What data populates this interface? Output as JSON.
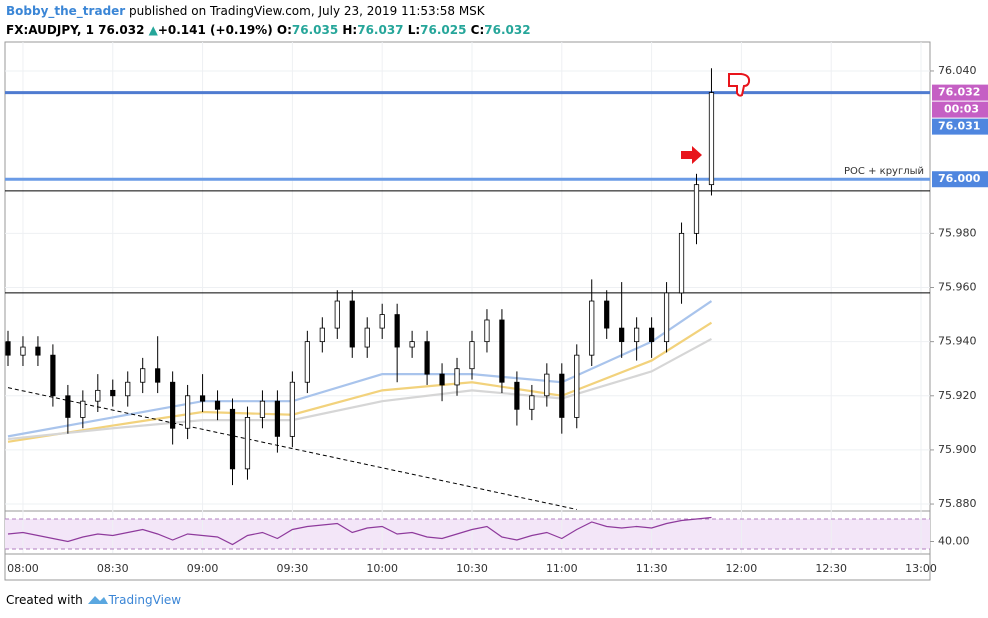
{
  "header": {
    "author": "Bobby_the_trader",
    "published": "published on TradingView.com, July 23, 2019 11:53:58 MSK",
    "symbol": "FX:AUDJPY, 1",
    "price": "76.032",
    "arrow": "▲",
    "change": "+0.141 (+0.19%)",
    "o_label": "O:",
    "o": "76.035",
    "h_label": "H:",
    "h": "76.037",
    "l_label": "L:",
    "l": "76.025",
    "c_label": "C:",
    "c": "76.032"
  },
  "footer": {
    "created": "Created with",
    "brand": "TradingView"
  },
  "chart_data": {
    "type": "candlestick",
    "x": [
      "07:55",
      "08:00",
      "08:05",
      "08:10",
      "08:15",
      "08:20",
      "08:25",
      "08:30",
      "08:35",
      "08:40",
      "08:45",
      "08:50",
      "08:55",
      "09:00",
      "09:05",
      "09:10",
      "09:15",
      "09:20",
      "09:25",
      "09:30",
      "09:35",
      "09:40",
      "09:45",
      "09:50",
      "09:55",
      "10:00",
      "10:05",
      "10:10",
      "10:15",
      "10:20",
      "10:25",
      "10:30",
      "10:35",
      "10:40",
      "10:45",
      "10:50",
      "10:55",
      "11:00",
      "11:05",
      "11:10",
      "11:15",
      "11:20",
      "11:25",
      "11:30",
      "11:35",
      "11:40",
      "11:45",
      "11:50"
    ],
    "open": [
      75.94,
      75.935,
      75.938,
      75.935,
      75.92,
      75.912,
      75.918,
      75.922,
      75.92,
      75.925,
      75.93,
      75.925,
      75.908,
      75.92,
      75.918,
      75.915,
      75.893,
      75.912,
      75.918,
      75.905,
      75.925,
      75.94,
      75.945,
      75.955,
      75.938,
      75.945,
      75.95,
      75.938,
      75.94,
      75.928,
      75.924,
      75.93,
      75.94,
      75.948,
      75.925,
      75.915,
      75.92,
      75.928,
      75.912,
      75.935,
      75.955,
      75.945,
      75.94,
      75.945,
      75.94,
      75.958,
      75.98,
      75.998
    ],
    "high": [
      75.944,
      75.942,
      75.942,
      75.939,
      75.924,
      75.922,
      75.928,
      75.926,
      75.929,
      75.934,
      75.942,
      75.929,
      75.924,
      75.928,
      75.922,
      75.919,
      75.916,
      75.922,
      75.922,
      75.929,
      75.944,
      75.949,
      75.959,
      75.959,
      75.949,
      75.954,
      75.954,
      75.944,
      75.944,
      75.932,
      75.934,
      75.944,
      75.952,
      75.952,
      75.929,
      75.924,
      75.932,
      75.932,
      75.939,
      75.963,
      75.959,
      75.962,
      75.949,
      75.949,
      75.962,
      75.984,
      76.002,
      76.041
    ],
    "low": [
      75.931,
      75.931,
      75.931,
      75.916,
      75.906,
      75.908,
      75.914,
      75.916,
      75.916,
      75.921,
      75.921,
      75.902,
      75.904,
      75.914,
      75.911,
      75.887,
      75.889,
      75.908,
      75.899,
      75.901,
      75.921,
      75.936,
      75.941,
      75.934,
      75.934,
      75.941,
      75.925,
      75.934,
      75.924,
      75.918,
      75.92,
      75.926,
      75.936,
      75.921,
      75.909,
      75.911,
      75.916,
      75.906,
      75.908,
      75.931,
      75.941,
      75.934,
      75.933,
      75.934,
      75.936,
      75.954,
      75.976,
      75.994
    ],
    "close": [
      75.935,
      75.938,
      75.935,
      75.92,
      75.912,
      75.918,
      75.922,
      75.92,
      75.925,
      75.93,
      75.925,
      75.908,
      75.92,
      75.918,
      75.915,
      75.893,
      75.912,
      75.918,
      75.905,
      75.925,
      75.94,
      75.945,
      75.955,
      75.938,
      75.945,
      75.95,
      75.938,
      75.94,
      75.928,
      75.924,
      75.93,
      75.94,
      75.948,
      75.925,
      75.915,
      75.92,
      75.928,
      75.912,
      75.935,
      75.955,
      75.945,
      75.94,
      75.945,
      75.94,
      75.958,
      75.98,
      75.998,
      76.032
    ],
    "up_color": "#ffffff",
    "down_color": "#000000",
    "wick_color": "#000000",
    "xlim": [
      "07:54",
      "13:03"
    ],
    "xticks": [
      "08:00",
      "08:30",
      "09:00",
      "09:30",
      "10:00",
      "10:30",
      "11:00",
      "11:30",
      "12:00",
      "12:30",
      "13:00"
    ],
    "ylim": [
      75.8778,
      76.0507
    ],
    "yticks": [
      {
        "value": 76.04,
        "label": "76.040"
      },
      {
        "value": 75.98,
        "label": "75.980"
      },
      {
        "value": 75.96,
        "label": "75.960"
      },
      {
        "value": 75.94,
        "label": "75.940"
      },
      {
        "value": 75.92,
        "label": "75.920"
      },
      {
        "value": 75.9,
        "label": "75.900"
      },
      {
        "value": 75.88,
        "label": "75.880"
      }
    ],
    "grid": true,
    "moving_averages": [
      {
        "color": "#a9c4ec",
        "x": [
          "07:55",
          "08:30",
          "09:00",
          "09:30",
          "10:00",
          "10:30",
          "11:00",
          "11:30",
          "11:50"
        ],
        "values": [
          75.905,
          75.912,
          75.918,
          75.918,
          75.928,
          75.928,
          75.925,
          75.94,
          75.955
        ]
      },
      {
        "color": "#f2d27c",
        "x": [
          "07:55",
          "08:30",
          "09:00",
          "09:30",
          "10:00",
          "10:30",
          "11:00",
          "11:30",
          "11:50"
        ],
        "values": [
          75.903,
          75.909,
          75.914,
          75.913,
          75.922,
          75.925,
          75.92,
          75.933,
          75.947
        ]
      },
      {
        "color": "#d6d6d6",
        "x": [
          "07:55",
          "08:30",
          "09:00",
          "09:30",
          "10:00",
          "10:30",
          "11:00",
          "11:30",
          "11:50"
        ],
        "values": [
          75.904,
          75.908,
          75.911,
          75.911,
          75.918,
          75.922,
          75.919,
          75.929,
          75.941
        ]
      }
    ],
    "levels": [
      {
        "value": 76.032,
        "color": "#4f7bd0"
      },
      {
        "value": 76.0,
        "color": "#6a9be6"
      },
      {
        "value": 75.9957,
        "color": "#000000"
      },
      {
        "value": 75.958,
        "color": "#000000"
      }
    ],
    "level_annotation": {
      "value": 76.0,
      "text": "POC + круглый"
    },
    "trendline": {
      "x": [
        "07:55",
        "11:05"
      ],
      "values": [
        75.923,
        75.878
      ]
    },
    "price_badges": [
      {
        "value": 76.032,
        "label": "76.032",
        "color": "#c55fc4"
      },
      {
        "value": 76.031,
        "label": "76.031",
        "color": "#4f86df"
      },
      {
        "value": 76.0,
        "label": "76.000",
        "color": "#4f86df"
      }
    ],
    "countdown": "00:03",
    "rsi": {
      "values": [
        50,
        52,
        48,
        44,
        40,
        46,
        50,
        48,
        52,
        56,
        50,
        42,
        50,
        48,
        46,
        36,
        48,
        52,
        44,
        56,
        60,
        62,
        64,
        52,
        58,
        60,
        50,
        52,
        46,
        44,
        50,
        56,
        60,
        46,
        42,
        48,
        52,
        44,
        56,
        66,
        60,
        58,
        60,
        58,
        64,
        68,
        70,
        72
      ],
      "color": "#8e3a9c",
      "ylim": [
        24.7,
        79.3
      ],
      "yticks": [
        {
          "value": 40,
          "label": "40.00"
        }
      ],
      "bands": [
        70,
        30
      ]
    }
  }
}
